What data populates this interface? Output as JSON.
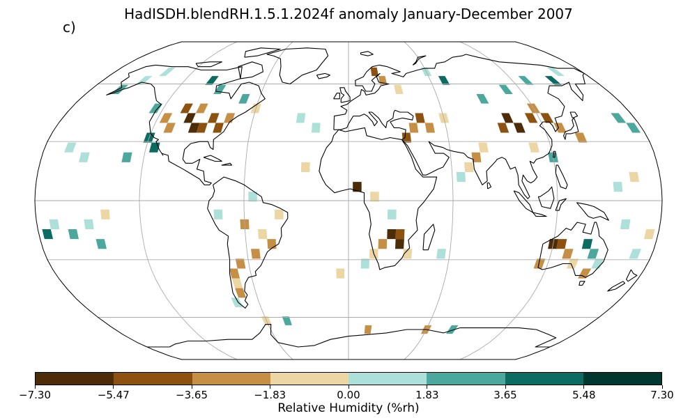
{
  "title": "HadISDH.blendRH.1.5.1.2024f anomaly January-December 2007",
  "panel_label": "c)",
  "colorbar": {
    "label": "Relative Humidity (%rh)",
    "ticks": [
      "−7.30",
      "−5.47",
      "−3.65",
      "−1.83",
      "0.00",
      "1.83",
      "3.65",
      "5.48",
      "7.30"
    ],
    "tick_values": [
      -7.3,
      -5.47,
      -3.65,
      -1.83,
      0.0,
      1.83,
      3.65,
      5.48,
      7.3
    ],
    "colors": [
      "#4d2c08",
      "#8d520f",
      "#c58f45",
      "#ebd6a4",
      "#ade0d9",
      "#4ca89c",
      "#0c6c62",
      "#00372e"
    ]
  },
  "map": {
    "projection": "Robinson",
    "graticule": true,
    "coastlines": true,
    "grid_resolution_deg": 5,
    "anomaly_cells": [
      {
        "lon": -100,
        "lat": 42,
        "level": 0
      },
      {
        "lon": -95,
        "lat": 37,
        "level": 0
      },
      {
        "lon": -90,
        "lat": 37,
        "level": 1
      },
      {
        "lon": -85,
        "lat": 42,
        "level": 1
      },
      {
        "lon": -105,
        "lat": 47,
        "level": 1
      },
      {
        "lon": -80,
        "lat": 37,
        "level": 1
      },
      {
        "lon": -110,
        "lat": 37,
        "level": 2
      },
      {
        "lon": -115,
        "lat": 42,
        "level": 2
      },
      {
        "lon": -95,
        "lat": 47,
        "level": 2
      },
      {
        "lon": -75,
        "lat": 42,
        "level": 2
      },
      {
        "lon": -120,
        "lat": 32,
        "level": 6
      },
      {
        "lon": -115,
        "lat": 27,
        "level": 6
      },
      {
        "lon": -125,
        "lat": 47,
        "level": 5
      },
      {
        "lon": -150,
        "lat": 62,
        "level": 4
      },
      {
        "lon": -140,
        "lat": 67,
        "level": 4
      },
      {
        "lon": -160,
        "lat": 57,
        "level": 5
      },
      {
        "lon": -100,
        "lat": 62,
        "level": 6
      },
      {
        "lon": -90,
        "lat": 57,
        "level": 5
      },
      {
        "lon": -70,
        "lat": 52,
        "level": 5
      },
      {
        "lon": -60,
        "lat": 47,
        "level": 3
      },
      {
        "lon": 20,
        "lat": 67,
        "level": 1
      },
      {
        "lon": 25,
        "lat": 62,
        "level": 2
      },
      {
        "lon": 35,
        "lat": 57,
        "level": 3
      },
      {
        "lon": 45,
        "lat": 42,
        "level": 1
      },
      {
        "lon": 40,
        "lat": 37,
        "level": 2
      },
      {
        "lon": 50,
        "lat": 37,
        "level": 2
      },
      {
        "lon": 60,
        "lat": 42,
        "level": 3
      },
      {
        "lon": 35,
        "lat": 32,
        "level": 1
      },
      {
        "lon": 100,
        "lat": 42,
        "level": 0
      },
      {
        "lon": 105,
        "lat": 37,
        "level": 0
      },
      {
        "lon": 95,
        "lat": 37,
        "level": 1
      },
      {
        "lon": 115,
        "lat": 42,
        "level": 1
      },
      {
        "lon": 120,
        "lat": 47,
        "level": 2
      },
      {
        "lon": 125,
        "lat": 42,
        "level": 1
      },
      {
        "lon": 130,
        "lat": 37,
        "level": 2
      },
      {
        "lon": 140,
        "lat": 32,
        "level": 2
      },
      {
        "lon": 110,
        "lat": 27,
        "level": 3
      },
      {
        "lon": 80,
        "lat": 27,
        "level": 3
      },
      {
        "lon": 75,
        "lat": 22,
        "level": 2
      },
      {
        "lon": 90,
        "lat": 52,
        "level": 5
      },
      {
        "lon": 110,
        "lat": 57,
        "level": 5
      },
      {
        "lon": 130,
        "lat": 62,
        "level": 5
      },
      {
        "lon": 150,
        "lat": 62,
        "level": 6
      },
      {
        "lon": 70,
        "lat": 62,
        "level": 6
      },
      {
        "lon": 60,
        "lat": 67,
        "level": 4
      },
      {
        "lon": 160,
        "lat": 67,
        "level": 4
      },
      {
        "lon": 170,
        "lat": 42,
        "level": 5
      },
      {
        "lon": 175,
        "lat": 37,
        "level": 5
      },
      {
        "lon": 120,
        "lat": 22,
        "level": 5
      },
      {
        "lon": 25,
        "lat": -17,
        "level": 0
      },
      {
        "lon": 30,
        "lat": -22,
        "level": 0
      },
      {
        "lon": 30,
        "lat": -17,
        "level": 1
      },
      {
        "lon": 20,
        "lat": -22,
        "level": 2
      },
      {
        "lon": 35,
        "lat": -27,
        "level": 3
      },
      {
        "lon": 15,
        "lat": -27,
        "level": 3
      },
      {
        "lon": 5,
        "lat": 7,
        "level": 0
      },
      {
        "lon": 15,
        "lat": 2,
        "level": 3
      },
      {
        "lon": 25,
        "lat": -7,
        "level": 4
      },
      {
        "lon": 120,
        "lat": -22,
        "level": 0
      },
      {
        "lon": 125,
        "lat": -22,
        "level": 1
      },
      {
        "lon": 130,
        "lat": -27,
        "level": 2
      },
      {
        "lon": 140,
        "lat": -22,
        "level": 6
      },
      {
        "lon": 145,
        "lat": -27,
        "level": 5
      },
      {
        "lon": 150,
        "lat": -32,
        "level": 4
      },
      {
        "lon": 135,
        "lat": -32,
        "level": 3
      },
      {
        "lon": 115,
        "lat": -32,
        "level": 2
      },
      {
        "lon": 145,
        "lat": -37,
        "level": 2
      },
      {
        "lon": -60,
        "lat": -12,
        "level": 2
      },
      {
        "lon": -50,
        "lat": -17,
        "level": 3
      },
      {
        "lon": -45,
        "lat": -22,
        "level": 2
      },
      {
        "lon": -55,
        "lat": -27,
        "level": 2
      },
      {
        "lon": -65,
        "lat": -32,
        "level": 2
      },
      {
        "lon": -70,
        "lat": -37,
        "level": 2
      },
      {
        "lon": -70,
        "lat": -42,
        "level": 3
      },
      {
        "lon": -70,
        "lat": -47,
        "level": 2
      },
      {
        "lon": -75,
        "lat": -52,
        "level": 4
      },
      {
        "lon": -40,
        "lat": -7,
        "level": 3
      },
      {
        "lon": -75,
        "lat": -7,
        "level": 4
      },
      {
        "lon": -55,
        "lat": 2,
        "level": 4
      },
      {
        "lon": -175,
        "lat": -17,
        "level": 6
      },
      {
        "lon": -170,
        "lat": -12,
        "level": 4
      },
      {
        "lon": -160,
        "lat": -17,
        "level": 5
      },
      {
        "lon": -150,
        "lat": -12,
        "level": 4
      },
      {
        "lon": -145,
        "lat": -22,
        "level": 5
      },
      {
        "lon": -140,
        "lat": -7,
        "level": 3
      },
      {
        "lon": -155,
        "lat": 22,
        "level": 4
      },
      {
        "lon": -165,
        "lat": 27,
        "level": 4
      },
      {
        "lon": -130,
        "lat": 22,
        "level": 5
      },
      {
        "lon": -20,
        "lat": 37,
        "level": 4
      },
      {
        "lon": -30,
        "lat": 42,
        "level": 4
      },
      {
        "lon": -25,
        "lat": 17,
        "level": 3
      },
      {
        "lon": -5,
        "lat": -37,
        "level": 3
      },
      {
        "lon": 10,
        "lat": -32,
        "level": 4
      },
      {
        "lon": 55,
        "lat": -27,
        "level": 4
      },
      {
        "lon": 65,
        "lat": 12,
        "level": 4
      },
      {
        "lon": 70,
        "lat": 17,
        "level": 3
      },
      {
        "lon": 155,
        "lat": 7,
        "level": 4
      },
      {
        "lon": 165,
        "lat": 12,
        "level": 3
      },
      {
        "lon": 160,
        "lat": -12,
        "level": 4
      },
      {
        "lon": 175,
        "lat": -17,
        "level": 3
      },
      {
        "lon": 170,
        "lat": -27,
        "level": 4
      },
      {
        "lon": 15,
        "lat": -67,
        "level": 2
      },
      {
        "lon": 60,
        "lat": -67,
        "level": 2
      },
      {
        "lon": 80,
        "lat": -67,
        "level": 5
      },
      {
        "lon": -45,
        "lat": -62,
        "level": 5
      },
      {
        "lon": -60,
        "lat": -62,
        "level": 3
      }
    ]
  }
}
